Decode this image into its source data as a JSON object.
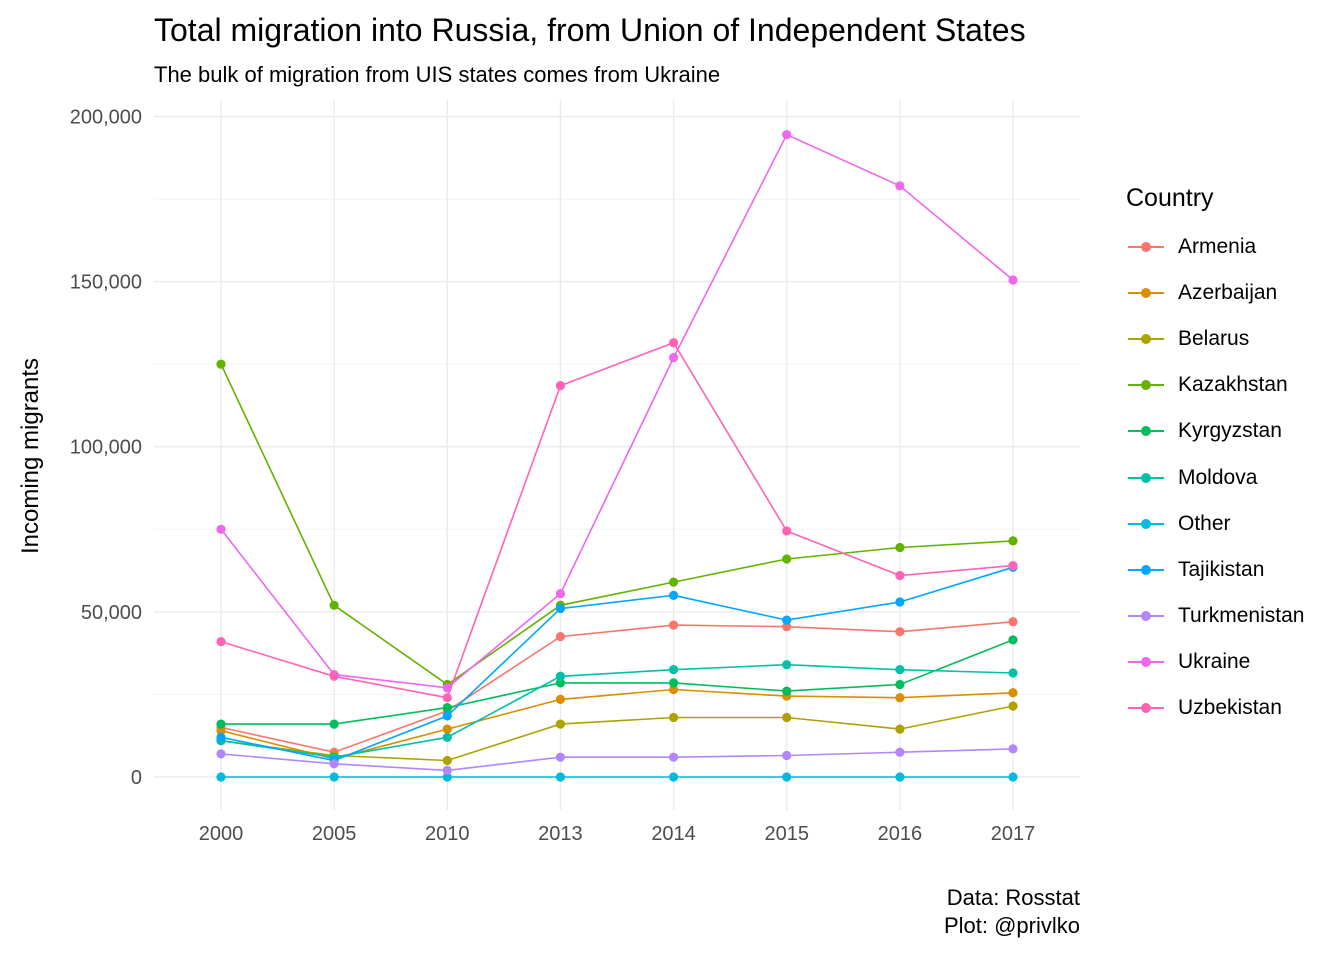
{
  "chart_data": {
    "type": "line",
    "title": "Total migration into Russia, from Union of Independent States",
    "subtitle": "The bulk of migration from UIS states comes from Ukraine",
    "caption": [
      "Data: Rosstat",
      "Plot: @privlko"
    ],
    "xlabel": "",
    "ylabel": "Incoming migrants",
    "x": [
      "2000",
      "2005",
      "2010",
      "2013",
      "2014",
      "2015",
      "2016",
      "2017"
    ],
    "ylim": [
      -10000,
      205000
    ],
    "yticks": [
      0,
      50000,
      100000,
      150000,
      200000
    ],
    "ytick_labels": [
      "0",
      "50,000",
      "100,000",
      "150,000",
      "200,000"
    ],
    "grid": true,
    "legend": {
      "title": "Country",
      "position": "right"
    },
    "series": [
      {
        "name": "Armenia",
        "color": "#F8766D",
        "values": [
          15000,
          7500,
          20000,
          42500,
          46000,
          45500,
          44000,
          47000
        ]
      },
      {
        "name": "Azerbaijan",
        "color": "#DB8E00",
        "values": [
          14000,
          5500,
          14500,
          23500,
          26500,
          24500,
          24000,
          25500
        ]
      },
      {
        "name": "Belarus",
        "color": "#AEA200",
        "values": [
          11000,
          6500,
          5000,
          16000,
          18000,
          18000,
          14500,
          21500
        ]
      },
      {
        "name": "Kazakhstan",
        "color": "#64B200",
        "values": [
          125000,
          52000,
          28000,
          52000,
          59000,
          66000,
          69500,
          71500
        ]
      },
      {
        "name": "Kyrgyzstan",
        "color": "#00BD5C",
        "values": [
          16000,
          16000,
          21000,
          28500,
          28500,
          26000,
          28000,
          41500
        ]
      },
      {
        "name": "Moldova",
        "color": "#00C1A7",
        "values": [
          11000,
          6000,
          12000,
          30500,
          32500,
          34000,
          32500,
          31500
        ]
      },
      {
        "name": "Other",
        "color": "#00BADE",
        "values": [
          0,
          0,
          0,
          0,
          0,
          0,
          0,
          0
        ]
      },
      {
        "name": "Tajikistan",
        "color": "#00A6FF",
        "values": [
          12000,
          5000,
          18500,
          51000,
          55000,
          47500,
          53000,
          63500
        ]
      },
      {
        "name": "Turkmenistan",
        "color": "#B385FF",
        "values": [
          7000,
          4000,
          2000,
          6000,
          6000,
          6500,
          7500,
          8500
        ]
      },
      {
        "name": "Ukraine",
        "color": "#EF67EB",
        "values": [
          75000,
          31000,
          27000,
          55500,
          127000,
          194500,
          179000,
          150500
        ]
      },
      {
        "name": "Uzbekistan",
        "color": "#FF63B6",
        "values": [
          41000,
          30500,
          24000,
          118500,
          131500,
          74500,
          61000,
          64000
        ]
      }
    ]
  }
}
